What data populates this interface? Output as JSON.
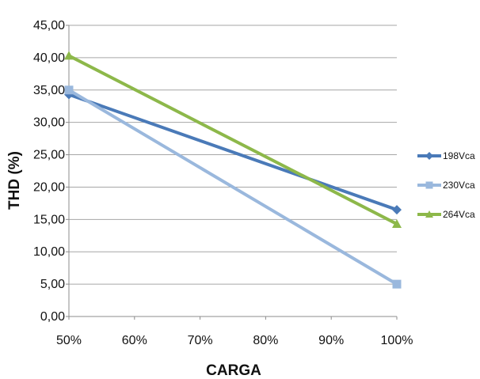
{
  "chart_data": {
    "type": "line",
    "title": "",
    "xlabel": "CARGA",
    "ylabel": "THD (%)",
    "x": [
      50,
      100
    ],
    "x_tick_labels": [
      "50%",
      "60%",
      "70%",
      "80%",
      "90%",
      "100%"
    ],
    "x_ticks": [
      50,
      60,
      70,
      80,
      90,
      100
    ],
    "xlim": [
      50,
      100
    ],
    "ylim": [
      0,
      45
    ],
    "y_ticks": [
      0,
      5,
      10,
      15,
      20,
      25,
      30,
      35,
      40,
      45
    ],
    "y_tick_labels": [
      "0,00",
      "5,00",
      "10,00",
      "15,00",
      "20,00",
      "25,00",
      "30,00",
      "35,00",
      "40,00",
      "45,00"
    ],
    "grid": true,
    "legend_position": "right",
    "series": [
      {
        "name": "198Vca",
        "values": [
          34.3,
          16.5
        ],
        "color": "#4a7ab8",
        "marker": "diamond"
      },
      {
        "name": "230Vca",
        "values": [
          35.0,
          5.0
        ],
        "color": "#9ab8dd",
        "marker": "square"
      },
      {
        "name": "264Vca",
        "values": [
          40.3,
          14.3
        ],
        "color": "#8db84a",
        "marker": "triangle"
      }
    ]
  }
}
